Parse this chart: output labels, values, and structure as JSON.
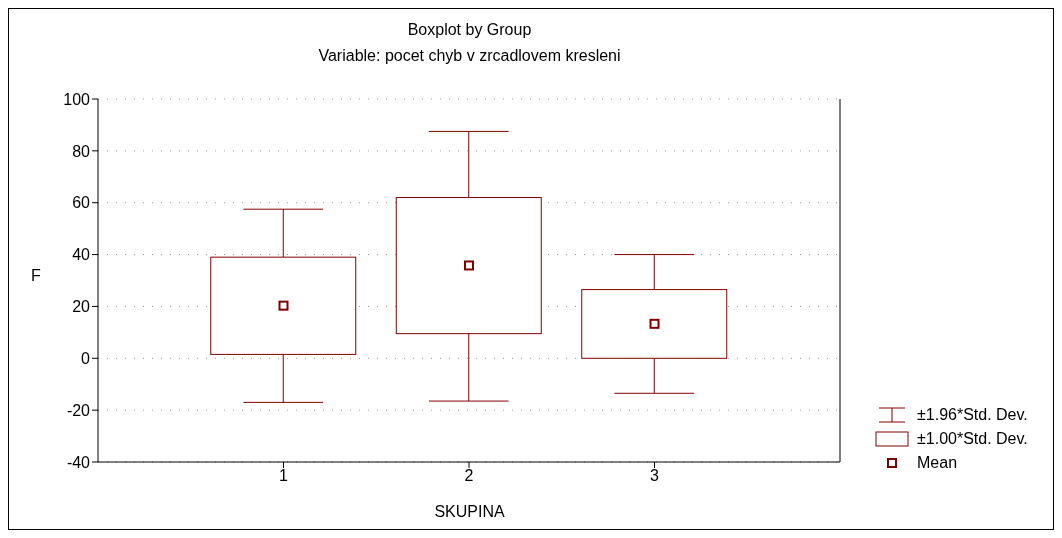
{
  "chart_data": {
    "type": "box",
    "title": "Boxplot by Group",
    "subtitle": "Variable: pocet chyb v zrcadlovem kresleni",
    "xlabel": "SKUPINA",
    "ylabel": "F",
    "categories": [
      "1",
      "2",
      "3"
    ],
    "boxes": [
      {
        "low": -17,
        "q1": 1.5,
        "q3": 39,
        "high": 57.5,
        "mean": 20.3
      },
      {
        "low": -16.5,
        "q1": 9.5,
        "q3": 62,
        "high": 87.5,
        "mean": 35.8
      },
      {
        "low": -13.5,
        "q1": 0,
        "q3": 26.5,
        "high": 40,
        "mean": 13.3
      }
    ],
    "color": "#800000",
    "ylim": [
      -40,
      100
    ],
    "yticks": [
      -40,
      -20,
      0,
      20,
      40,
      60,
      80,
      100
    ],
    "grid": "y",
    "marker": "square",
    "annotations": [
      "±1.96*Std. Dev.",
      "±1.00*Std. Dev.",
      "Mean"
    ]
  }
}
